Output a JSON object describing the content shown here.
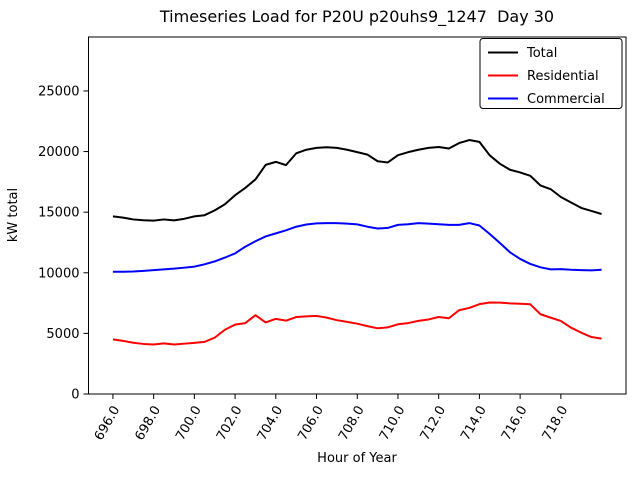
{
  "chart_data": {
    "type": "line",
    "title": "Timeseries Load for P20U p20uhs9_1247  Day 30",
    "xlabel": "Hour of Year",
    "ylabel": "kW total",
    "xlim": [
      694.8,
      721.2
    ],
    "ylim": [
      0,
      29450
    ],
    "grid": false,
    "legend_position": "upper right",
    "xticks": [
      696,
      698,
      700,
      702,
      704,
      706,
      708,
      710,
      712,
      714,
      716,
      718
    ],
    "xtick_labels": [
      "696.0",
      "698.0",
      "700.0",
      "702.0",
      "704.0",
      "706.0",
      "708.0",
      "710.0",
      "712.0",
      "714.0",
      "716.0",
      "718.0"
    ],
    "yticks": [
      0,
      5000,
      10000,
      15000,
      20000,
      25000
    ],
    "ytick_labels": [
      "0",
      "5000",
      "10000",
      "15000",
      "20000",
      "25000"
    ],
    "x": [
      696.0,
      696.5,
      697.0,
      697.5,
      698.0,
      698.5,
      699.0,
      699.5,
      700.0,
      700.5,
      701.0,
      701.5,
      702.0,
      702.5,
      703.0,
      703.5,
      704.0,
      704.5,
      705.0,
      705.5,
      706.0,
      706.5,
      707.0,
      707.5,
      708.0,
      708.5,
      709.0,
      709.5,
      710.0,
      710.5,
      711.0,
      711.5,
      712.0,
      712.5,
      713.0,
      713.5,
      714.0,
      714.5,
      715.0,
      715.5,
      716.0,
      716.5,
      717.0,
      717.5,
      718.0,
      718.5,
      719.0,
      719.5,
      720.0
    ],
    "series": [
      {
        "name": "Total",
        "color": "#000000",
        "values": [
          14650,
          14550,
          14400,
          14330,
          14300,
          14400,
          14320,
          14450,
          14650,
          14750,
          15150,
          15650,
          16400,
          17000,
          17700,
          18900,
          19150,
          18880,
          19850,
          20150,
          20300,
          20350,
          20300,
          20150,
          19950,
          19750,
          19200,
          19100,
          19700,
          19950,
          20150,
          20300,
          20380,
          20250,
          20700,
          20950,
          20800,
          19700,
          19000,
          18500,
          18280,
          18000,
          17200,
          16900,
          16250,
          15800,
          15350,
          15100,
          14850
        ]
      },
      {
        "name": "Residential",
        "color": "#ff0000",
        "values": [
          4510,
          4380,
          4230,
          4130,
          4080,
          4180,
          4080,
          4150,
          4220,
          4300,
          4650,
          5300,
          5720,
          5850,
          6500,
          5900,
          6200,
          6050,
          6350,
          6400,
          6440,
          6300,
          6090,
          5950,
          5800,
          5600,
          5420,
          5500,
          5750,
          5850,
          6030,
          6150,
          6350,
          6250,
          6910,
          7100,
          7410,
          7550,
          7540,
          7480,
          7450,
          7400,
          6580,
          6300,
          6030,
          5470,
          5060,
          4700,
          4570
        ]
      },
      {
        "name": "Commercial",
        "color": "#0000ff",
        "values": [
          10080,
          10090,
          10110,
          10160,
          10220,
          10280,
          10340,
          10420,
          10510,
          10700,
          10940,
          11250,
          11600,
          12150,
          12600,
          13000,
          13250,
          13500,
          13800,
          13980,
          14080,
          14100,
          14100,
          14050,
          13990,
          13800,
          13650,
          13700,
          13950,
          14000,
          14100,
          14050,
          14000,
          13950,
          13950,
          14100,
          13900,
          13210,
          12470,
          11690,
          11140,
          10730,
          10450,
          10280,
          10300,
          10250,
          10220,
          10200,
          10250
        ]
      }
    ]
  }
}
